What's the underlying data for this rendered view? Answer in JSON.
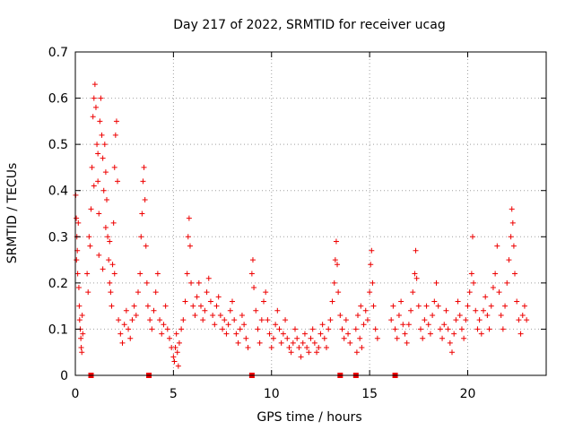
{
  "chart_data": {
    "type": "scatter",
    "title": "Day 217 of 2022, SRMTID for receiver ucag",
    "xlabel": "GPS time / hours",
    "ylabel": "SRMTID / TECUs",
    "xlim": [
      0,
      24
    ],
    "ylim": [
      0,
      0.7
    ],
    "xticks": [
      0,
      5,
      10,
      15,
      20
    ],
    "yticks": [
      0,
      0.1,
      0.2,
      0.3,
      0.4,
      0.5,
      0.6,
      0.7
    ],
    "xtick_labels": [
      "0",
      "5",
      "10",
      "15",
      "20"
    ],
    "ytick_labels": [
      "0",
      "0.1",
      "0.2",
      "0.3",
      "0.4",
      "0.5",
      "0.6",
      "0.7"
    ],
    "grid": true,
    "marker": "+",
    "color": "#ee0000",
    "series": [
      {
        "name": "SRMTID",
        "points": [
          [
            0.05,
            0.34
          ],
          [
            0.08,
            0.3
          ],
          [
            0.1,
            0.27
          ],
          [
            0.12,
            0.22
          ],
          [
            0.15,
            0.33
          ],
          [
            0.18,
            0.19
          ],
          [
            0.2,
            0.15
          ],
          [
            0.22,
            0.12
          ],
          [
            0.25,
            0.1
          ],
          [
            0.28,
            0.08
          ],
          [
            0.3,
            0.06
          ],
          [
            0.33,
            0.05
          ],
          [
            0.35,
            0.13
          ],
          [
            0.38,
            0.09
          ],
          [
            0.02,
            0.39
          ],
          [
            0.06,
            0.25
          ],
          [
            0.6,
            0.22
          ],
          [
            0.7,
            0.3
          ],
          [
            0.8,
            0.36
          ],
          [
            0.85,
            0.45
          ],
          [
            0.9,
            0.56
          ],
          [
            0.95,
            0.6
          ],
          [
            1.0,
            0.63
          ],
          [
            1.05,
            0.58
          ],
          [
            1.1,
            0.5
          ],
          [
            1.15,
            0.42
          ],
          [
            1.2,
            0.35
          ],
          [
            1.25,
            0.55
          ],
          [
            1.3,
            0.6
          ],
          [
            1.35,
            0.52
          ],
          [
            1.4,
            0.47
          ],
          [
            1.45,
            0.4
          ],
          [
            1.5,
            0.5
          ],
          [
            1.55,
            0.44
          ],
          [
            1.6,
            0.38
          ],
          [
            1.65,
            0.3
          ],
          [
            1.7,
            0.25
          ],
          [
            1.75,
            0.2
          ],
          [
            1.8,
            0.18
          ],
          [
            1.85,
            0.15
          ],
          [
            1.9,
            0.24
          ],
          [
            1.95,
            0.33
          ],
          [
            2.0,
            0.45
          ],
          [
            2.05,
            0.52
          ],
          [
            2.1,
            0.55
          ],
          [
            2.15,
            0.42
          ],
          [
            0.75,
            0.28
          ],
          [
            0.95,
            0.41
          ],
          [
            1.15,
            0.48
          ],
          [
            1.55,
            0.32
          ],
          [
            1.75,
            0.29
          ],
          [
            2.0,
            0.22
          ],
          [
            1.2,
            0.26
          ],
          [
            1.4,
            0.23
          ],
          [
            0.65,
            0.18
          ],
          [
            2.2,
            0.12
          ],
          [
            2.3,
            0.09
          ],
          [
            2.4,
            0.07
          ],
          [
            2.5,
            0.11
          ],
          [
            2.6,
            0.14
          ],
          [
            2.7,
            0.1
          ],
          [
            2.8,
            0.08
          ],
          [
            2.9,
            0.12
          ],
          [
            3.0,
            0.15
          ],
          [
            3.1,
            0.13
          ],
          [
            3.2,
            0.18
          ],
          [
            3.3,
            0.22
          ],
          [
            3.35,
            0.3
          ],
          [
            3.4,
            0.35
          ],
          [
            3.45,
            0.42
          ],
          [
            3.5,
            0.45
          ],
          [
            3.55,
            0.38
          ],
          [
            3.6,
            0.28
          ],
          [
            3.65,
            0.2
          ],
          [
            3.7,
            0.15
          ],
          [
            3.8,
            0.12
          ],
          [
            3.9,
            0.1
          ],
          [
            4.0,
            0.14
          ],
          [
            4.1,
            0.18
          ],
          [
            4.2,
            0.22
          ],
          [
            4.3,
            0.12
          ],
          [
            4.4,
            0.09
          ],
          [
            4.5,
            0.11
          ],
          [
            4.6,
            0.15
          ],
          [
            4.7,
            0.1
          ],
          [
            4.8,
            0.08
          ],
          [
            4.9,
            0.06
          ],
          [
            5.0,
            0.04
          ],
          [
            5.05,
            0.03
          ],
          [
            5.1,
            0.06
          ],
          [
            5.15,
            0.09
          ],
          [
            5.2,
            0.05
          ],
          [
            5.25,
            0.02
          ],
          [
            5.3,
            0.07
          ],
          [
            5.4,
            0.1
          ],
          [
            5.5,
            0.12
          ],
          [
            5.6,
            0.16
          ],
          [
            5.7,
            0.22
          ],
          [
            5.75,
            0.3
          ],
          [
            5.8,
            0.34
          ],
          [
            5.85,
            0.28
          ],
          [
            5.9,
            0.2
          ],
          [
            6.0,
            0.15
          ],
          [
            6.1,
            0.13
          ],
          [
            6.2,
            0.17
          ],
          [
            6.3,
            0.2
          ],
          [
            6.4,
            0.15
          ],
          [
            6.5,
            0.12
          ],
          [
            6.6,
            0.14
          ],
          [
            6.7,
            0.18
          ],
          [
            6.8,
            0.21
          ],
          [
            6.9,
            0.16
          ],
          [
            7.0,
            0.13
          ],
          [
            7.1,
            0.11
          ],
          [
            7.2,
            0.15
          ],
          [
            7.3,
            0.17
          ],
          [
            7.4,
            0.13
          ],
          [
            7.5,
            0.1
          ],
          [
            7.6,
            0.12
          ],
          [
            7.7,
            0.09
          ],
          [
            7.8,
            0.11
          ],
          [
            7.9,
            0.14
          ],
          [
            8.0,
            0.16
          ],
          [
            8.1,
            0.12
          ],
          [
            8.2,
            0.09
          ],
          [
            8.3,
            0.07
          ],
          [
            8.4,
            0.1
          ],
          [
            8.5,
            0.13
          ],
          [
            8.6,
            0.11
          ],
          [
            8.7,
            0.08
          ],
          [
            8.8,
            0.06
          ],
          [
            9.0,
            0.22
          ],
          [
            9.05,
            0.25
          ],
          [
            9.1,
            0.19
          ],
          [
            9.2,
            0.14
          ],
          [
            9.3,
            0.1
          ],
          [
            9.4,
            0.07
          ],
          [
            9.5,
            0.12
          ],
          [
            9.6,
            0.16
          ],
          [
            9.7,
            0.18
          ],
          [
            9.8,
            0.12
          ],
          [
            9.9,
            0.09
          ],
          [
            10.0,
            0.06
          ],
          [
            10.1,
            0.08
          ],
          [
            10.2,
            0.11
          ],
          [
            10.3,
            0.14
          ],
          [
            10.4,
            0.1
          ],
          [
            10.5,
            0.07
          ],
          [
            10.6,
            0.09
          ],
          [
            10.7,
            0.12
          ],
          [
            10.8,
            0.08
          ],
          [
            10.9,
            0.06
          ],
          [
            11.0,
            0.05
          ],
          [
            11.1,
            0.07
          ],
          [
            11.2,
            0.1
          ],
          [
            11.3,
            0.08
          ],
          [
            11.4,
            0.06
          ],
          [
            11.5,
            0.04
          ],
          [
            11.6,
            0.07
          ],
          [
            11.7,
            0.09
          ],
          [
            11.8,
            0.06
          ],
          [
            11.9,
            0.05
          ],
          [
            12.0,
            0.08
          ],
          [
            12.1,
            0.1
          ],
          [
            12.2,
            0.07
          ],
          [
            12.3,
            0.05
          ],
          [
            12.4,
            0.06
          ],
          [
            12.5,
            0.09
          ],
          [
            12.6,
            0.11
          ],
          [
            12.7,
            0.08
          ],
          [
            12.8,
            0.06
          ],
          [
            12.9,
            0.1
          ],
          [
            13.0,
            0.12
          ],
          [
            13.1,
            0.16
          ],
          [
            13.2,
            0.2
          ],
          [
            13.25,
            0.25
          ],
          [
            13.3,
            0.29
          ],
          [
            13.35,
            0.24
          ],
          [
            13.4,
            0.18
          ],
          [
            13.5,
            0.13
          ],
          [
            13.6,
            0.1
          ],
          [
            13.7,
            0.08
          ],
          [
            13.8,
            0.12
          ],
          [
            13.9,
            0.09
          ],
          [
            14.0,
            0.07
          ],
          [
            14.3,
            0.1
          ],
          [
            14.4,
            0.13
          ],
          [
            14.5,
            0.08
          ],
          [
            14.6,
            0.06
          ],
          [
            14.7,
            0.11
          ],
          [
            14.8,
            0.14
          ],
          [
            14.9,
            0.12
          ],
          [
            15.0,
            0.18
          ],
          [
            15.05,
            0.24
          ],
          [
            15.1,
            0.27
          ],
          [
            15.15,
            0.2
          ],
          [
            15.2,
            0.15
          ],
          [
            15.3,
            0.1
          ],
          [
            15.4,
            0.08
          ],
          [
            14.35,
            0.05
          ],
          [
            14.55,
            0.15
          ],
          [
            16.1,
            0.12
          ],
          [
            16.2,
            0.15
          ],
          [
            16.3,
            0.1
          ],
          [
            16.4,
            0.08
          ],
          [
            16.5,
            0.13
          ],
          [
            16.6,
            0.16
          ],
          [
            16.7,
            0.11
          ],
          [
            16.8,
            0.09
          ],
          [
            16.9,
            0.07
          ],
          [
            17.0,
            0.11
          ],
          [
            17.1,
            0.14
          ],
          [
            17.2,
            0.18
          ],
          [
            17.3,
            0.22
          ],
          [
            17.35,
            0.27
          ],
          [
            17.4,
            0.21
          ],
          [
            17.5,
            0.15
          ],
          [
            17.6,
            0.1
          ],
          [
            17.7,
            0.08
          ],
          [
            17.8,
            0.12
          ],
          [
            17.9,
            0.15
          ],
          [
            18.0,
            0.11
          ],
          [
            18.1,
            0.09
          ],
          [
            18.2,
            0.13
          ],
          [
            18.3,
            0.16
          ],
          [
            18.4,
            0.2
          ],
          [
            18.5,
            0.15
          ],
          [
            18.6,
            0.1
          ],
          [
            18.7,
            0.08
          ],
          [
            18.8,
            0.11
          ],
          [
            18.9,
            0.14
          ],
          [
            19.0,
            0.1
          ],
          [
            19.1,
            0.07
          ],
          [
            19.2,
            0.05
          ],
          [
            19.3,
            0.09
          ],
          [
            19.4,
            0.12
          ],
          [
            19.5,
            0.16
          ],
          [
            19.6,
            0.13
          ],
          [
            19.7,
            0.1
          ],
          [
            19.8,
            0.08
          ],
          [
            19.9,
            0.12
          ],
          [
            20.0,
            0.15
          ],
          [
            20.1,
            0.18
          ],
          [
            20.2,
            0.22
          ],
          [
            20.25,
            0.3
          ],
          [
            20.3,
            0.2
          ],
          [
            20.4,
            0.14
          ],
          [
            20.5,
            0.1
          ],
          [
            20.6,
            0.12
          ],
          [
            20.7,
            0.09
          ],
          [
            20.8,
            0.14
          ],
          [
            20.9,
            0.17
          ],
          [
            21.0,
            0.13
          ],
          [
            21.1,
            0.1
          ],
          [
            21.2,
            0.15
          ],
          [
            21.3,
            0.19
          ],
          [
            21.4,
            0.22
          ],
          [
            21.5,
            0.28
          ],
          [
            21.6,
            0.18
          ],
          [
            21.7,
            0.13
          ],
          [
            21.8,
            0.1
          ],
          [
            21.9,
            0.15
          ],
          [
            22.0,
            0.2
          ],
          [
            22.1,
            0.25
          ],
          [
            22.2,
            0.3
          ],
          [
            22.25,
            0.36
          ],
          [
            22.3,
            0.33
          ],
          [
            22.35,
            0.28
          ],
          [
            22.4,
            0.22
          ],
          [
            22.5,
            0.16
          ],
          [
            22.6,
            0.12
          ],
          [
            22.7,
            0.09
          ],
          [
            22.8,
            0.13
          ],
          [
            22.9,
            0.15
          ],
          [
            23.0,
            0.12
          ]
        ]
      }
    ],
    "gap_markers_x": [
      0.8,
      3.75,
      9.0,
      13.5,
      14.3,
      16.3
    ]
  }
}
